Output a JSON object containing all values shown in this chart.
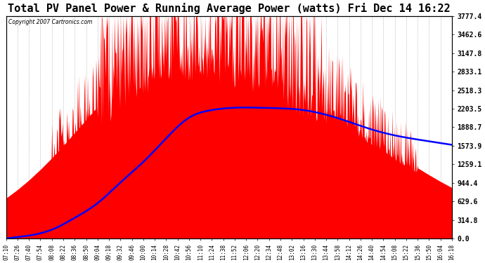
{
  "title": "Total PV Panel Power & Running Average Power (watts) Fri Dec 14 16:22",
  "copyright": "Copyright 2007 Cartronics.com",
  "ylabel_right_ticks": [
    0.0,
    314.8,
    629.6,
    944.4,
    1259.1,
    1573.9,
    1888.7,
    2203.5,
    2518.3,
    2833.1,
    3147.8,
    3462.6,
    3777.4
  ],
  "ymax": 3777.4,
  "ymin": 0.0,
  "background_color": "#ffffff",
  "plot_bg_color": "#ffffff",
  "grid_color": "#888888",
  "bar_color": "#ff0000",
  "line_color": "#0000ff",
  "title_fontsize": 11,
  "x_labels": [
    "07:10",
    "07:26",
    "07:40",
    "07:54",
    "08:08",
    "08:22",
    "08:36",
    "08:50",
    "09:04",
    "09:18",
    "09:32",
    "09:46",
    "10:00",
    "10:14",
    "10:28",
    "10:42",
    "10:56",
    "11:10",
    "11:24",
    "11:38",
    "11:52",
    "12:06",
    "12:20",
    "12:34",
    "12:48",
    "13:02",
    "13:16",
    "13:30",
    "13:44",
    "13:58",
    "14:12",
    "14:26",
    "14:40",
    "14:54",
    "15:08",
    "15:22",
    "15:36",
    "15:50",
    "16:04",
    "16:18"
  ]
}
